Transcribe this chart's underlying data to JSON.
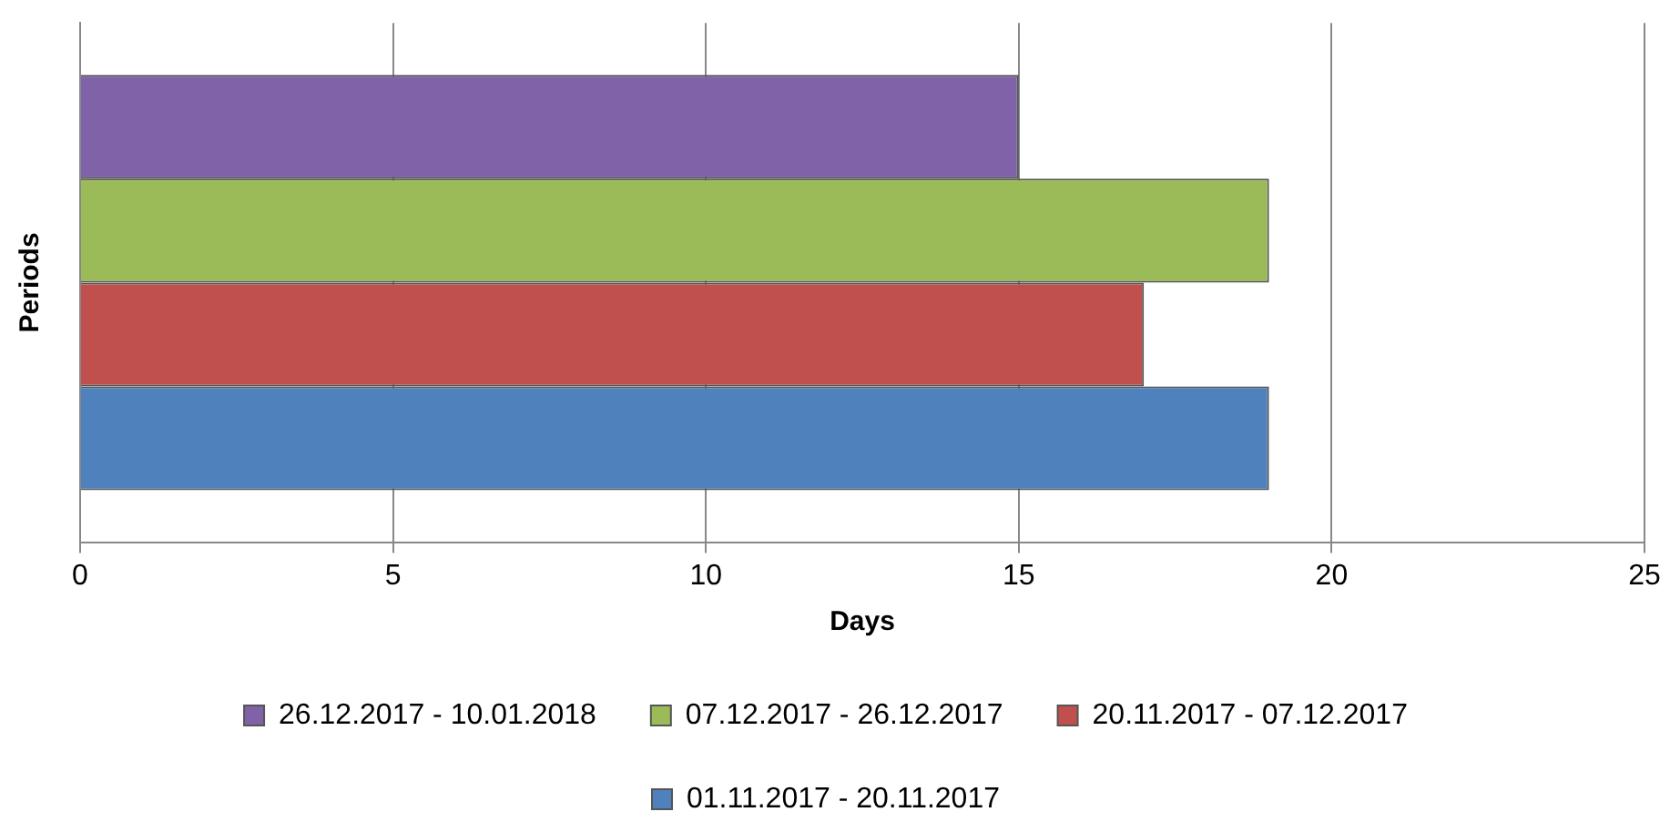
{
  "chart_data": {
    "type": "bar",
    "orientation": "horizontal",
    "xlabel": "Days",
    "ylabel": "Periods",
    "categories": [
      null
    ],
    "series": [
      {
        "name": "26.12.2017 - 10.01.2018",
        "color": "#7f62a8",
        "values": [
          15
        ]
      },
      {
        "name": "07.12.2017 - 26.12.2017",
        "color": "#9bbb59",
        "values": [
          19
        ]
      },
      {
        "name": "20.11.2017 - 07.12.2017",
        "color": "#c0504d",
        "values": [
          17
        ]
      },
      {
        "name": "01.11.2017 - 20.11.2017",
        "color": "#4f81bd",
        "values": [
          19
        ]
      }
    ],
    "xlim": [
      0,
      25
    ],
    "xticks": [
      0,
      5,
      10,
      15,
      20,
      25
    ],
    "grid": "x",
    "legend": "bottom"
  }
}
